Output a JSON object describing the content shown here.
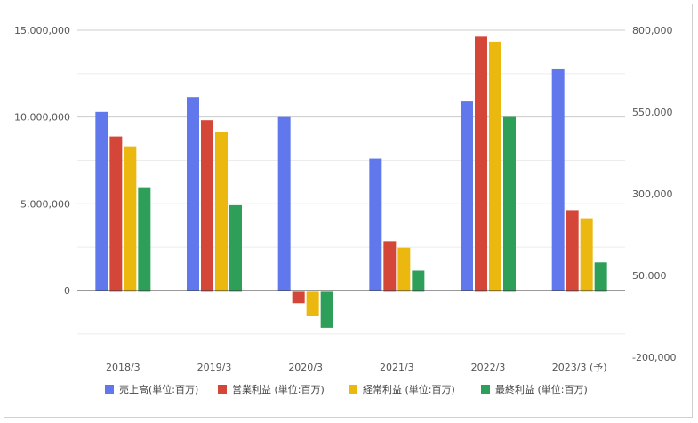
{
  "chart_data": {
    "type": "bar",
    "categories": [
      "2018/3",
      "2019/3",
      "2020/3",
      "2021/3",
      "2022/3",
      "2023/3 (予)"
    ],
    "y_left": {
      "ticks": [
        "15,000,000",
        "10,000,000",
        "5,000,000",
        "0"
      ],
      "tick_values": [
        15000000,
        10000000,
        5000000,
        0
      ],
      "range": [
        -2500000,
        15000000
      ]
    },
    "y_right": {
      "ticks": [
        "800,000",
        "550,000",
        "300,000",
        "50,000",
        "-200,000"
      ],
      "tick_values": [
        800000,
        550000,
        300000,
        50000,
        -200000
      ],
      "range": [
        -200000,
        800000
      ]
    },
    "series": [
      {
        "name": "売上高(単位:百万)",
        "axis": "left",
        "color": "#6178ec",
        "values": [
          10300000,
          11150000,
          10000000,
          7600000,
          10900000,
          12750000
        ]
      },
      {
        "name": "営業利益 (単位:百万)",
        "axis": "right",
        "color": "#d44638",
        "values": [
          475000,
          525000,
          -35000,
          155000,
          780000,
          250000
        ]
      },
      {
        "name": "経常利益 (単位:百万)",
        "axis": "right",
        "color": "#eab80f",
        "values": [
          445000,
          490000,
          -75000,
          135000,
          765000,
          225000
        ]
      },
      {
        "name": "最終利益 (単位:百万)",
        "axis": "right",
        "color": "#2e9f58",
        "values": [
          320000,
          265000,
          -110000,
          65000,
          535000,
          90000
        ]
      }
    ],
    "grid": true,
    "legend_position": "bottom"
  }
}
